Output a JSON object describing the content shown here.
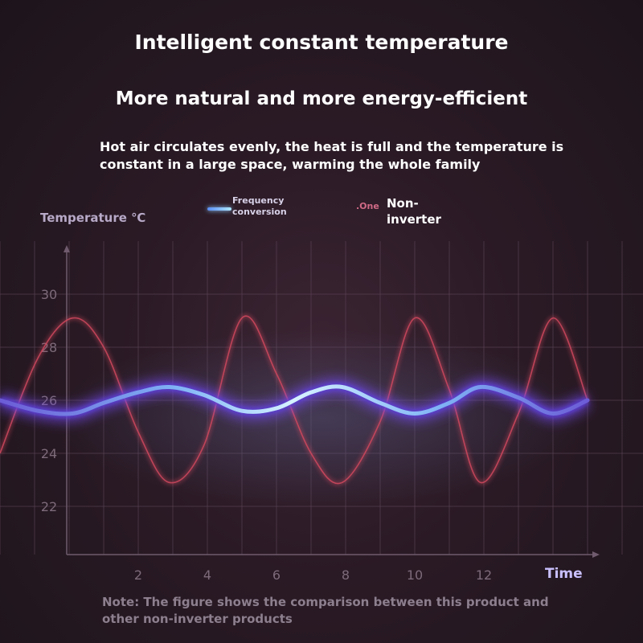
{
  "header": {
    "title": "Intelligent constant temperature",
    "subtitle": "More natural and more energy-efficient",
    "description": "Hot air circulates evenly, the heat is full and the temperature is constant in a large space, warming the whole family"
  },
  "legend": {
    "frequency_label": "Frequency conversion",
    "non_inverter_mark": ".One",
    "non_inverter_label": "Non-inverter"
  },
  "note": "Note: The figure shows the comparison between this product and other non-inverter products",
  "colors": {
    "frequency_line": "#8fc8ff",
    "frequency_glow": "#7a4dff",
    "non_inverter_line": "#d0485e",
    "grid": "#5e4658"
  },
  "chart_data": {
    "type": "line",
    "xlabel": "Time",
    "ylabel": "Temperature ℃",
    "x_ticks": [
      "2",
      "4",
      "6",
      "8",
      "10",
      "12"
    ],
    "y_ticks": [
      "22",
      "24",
      "26",
      "28",
      "30"
    ],
    "xlim": [
      -2,
      15
    ],
    "ylim": [
      20,
      32
    ],
    "grid": true,
    "legend_placement": "top",
    "series": [
      {
        "name": "Frequency conversion",
        "x": [
          -2,
          -0.9,
          0.1,
          1.0,
          2.0,
          2.9,
          3.9,
          5.0,
          6.0,
          7.0,
          7.9,
          9.0,
          10.0,
          11.0,
          11.9,
          13.0,
          14.0,
          15.0
        ],
        "y": [
          26.0,
          25.6,
          25.5,
          25.9,
          26.3,
          26.5,
          26.2,
          25.6,
          25.7,
          26.3,
          26.5,
          25.9,
          25.5,
          25.9,
          26.5,
          26.1,
          25.5,
          26.0
        ]
      },
      {
        "name": "Non-inverter",
        "x": [
          -2,
          -0.9,
          0.1,
          1.0,
          2.0,
          2.9,
          3.9,
          5.0,
          6.0,
          7.0,
          7.9,
          9.0,
          10.0,
          11.0,
          11.9,
          13.0,
          14.0,
          15.0
        ],
        "y": [
          24.0,
          27.6,
          29.1,
          28.0,
          24.8,
          22.9,
          24.3,
          29.1,
          27.0,
          24.0,
          22.9,
          25.2,
          29.1,
          26.4,
          22.9,
          25.5,
          29.1,
          26.0
        ]
      }
    ]
  }
}
